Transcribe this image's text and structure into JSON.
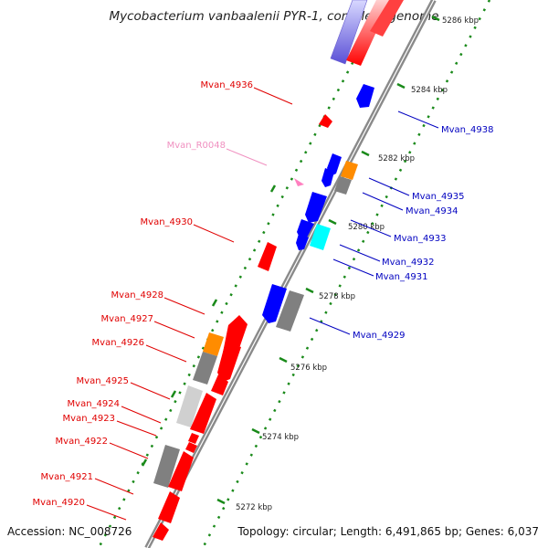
{
  "title": "Mycobacterium vanbaalenii PYR-1, complete genome",
  "accession_label": "Accession: NC_008726",
  "topology_label": "Topology: circular; Length: 6,491,865 bp; Genes: 6,037",
  "colors": {
    "backbone": "#8a8a8a",
    "reverse_label": "#e00000",
    "forward_label": "#0000c0",
    "rna_label": "#f090c0",
    "tick_dot": "#1a8a1a",
    "red_gene": "#ff0000",
    "blue_gene": "#0000ff",
    "orange_gene": "#ff8c00",
    "gray_gene": "#808080",
    "lightgray_gene": "#d0d0d0",
    "cyan_gene": "#00ffff",
    "pink_rna": "#ff80c0"
  },
  "ticks": [
    {
      "label": "5286 kbp",
      "kbp": 5286
    },
    {
      "label": "5284 kbp",
      "kbp": 5284
    },
    {
      "label": "5282 kbp",
      "kbp": 5282
    },
    {
      "label": "5280 kbp",
      "kbp": 5280
    },
    {
      "label": "5278 kbp",
      "kbp": 5278
    },
    {
      "label": "5276 kbp",
      "kbp": 5276
    },
    {
      "label": "5274 kbp",
      "kbp": 5274
    },
    {
      "label": "5272 kbp",
      "kbp": 5272
    }
  ],
  "labels": {
    "Mvan_4936": "Mvan_4936",
    "Mvan_R0048": "Mvan_R0048",
    "Mvan_4930": "Mvan_4930",
    "Mvan_4928": "Mvan_4928",
    "Mvan_4927": "Mvan_4927",
    "Mvan_4926": "Mvan_4926",
    "Mvan_4925": "Mvan_4925",
    "Mvan_4924": "Mvan_4924",
    "Mvan_4923": "Mvan_4923",
    "Mvan_4922": "Mvan_4922",
    "Mvan_4921": "Mvan_4921",
    "Mvan_4920": "Mvan_4920",
    "Mvan_4938": "Mvan_4938",
    "Mvan_4935": "Mvan_4935",
    "Mvan_4934": "Mvan_4934",
    "Mvan_4933": "Mvan_4933",
    "Mvan_4932": "Mvan_4932",
    "Mvan_4931": "Mvan_4931",
    "Mvan_4929": "Mvan_4929"
  }
}
